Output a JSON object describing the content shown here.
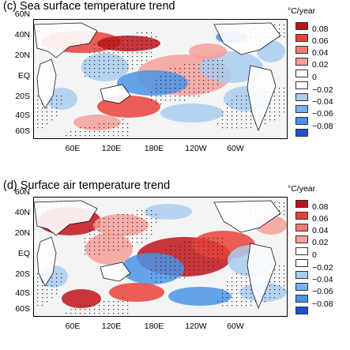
{
  "panels": [
    {
      "title": "(c) Sea surface temperature trend",
      "unit": "°C/year",
      "kind": "sst"
    },
    {
      "title": "(d) Surface air temperature trend",
      "unit": "°C/year",
      "kind": "sat"
    }
  ],
  "chart_data": [
    {
      "type": "heatmap",
      "title": "(c) Sea surface temperature trend",
      "colorbar_label": "°C/year",
      "y_tick_labels": [
        "60N",
        "40N",
        "20N",
        "EQ",
        "20S",
        "40S",
        "60S"
      ],
      "x_tick_labels": [
        "60E",
        "120E",
        "180E",
        "120W",
        "60W"
      ],
      "colorbar_levels": [
        -0.08,
        -0.06,
        -0.04,
        -0.02,
        0,
        0.02,
        0.04,
        0.06,
        0.08
      ],
      "colorbar_tick_labels": [
        "0.08",
        "0.06",
        "0.04",
        "0.02",
        "0",
        "−0.02",
        "−0.04",
        "−0.06",
        "−0.08"
      ]
    },
    {
      "type": "heatmap",
      "title": "(d) Surface air temperature trend",
      "colorbar_label": "°C/year",
      "y_tick_labels": [
        "60N",
        "40N",
        "20N",
        "EQ",
        "20S",
        "40S",
        "60S"
      ],
      "x_tick_labels": [
        "60E",
        "120E",
        "180E",
        "120W",
        "60W"
      ],
      "colorbar_levels": [
        -0.08,
        -0.06,
        -0.04,
        -0.02,
        0,
        0.02,
        0.04,
        0.06,
        0.08
      ],
      "colorbar_tick_labels": [
        "0.08",
        "0.06",
        "0.04",
        "0.02",
        "0",
        "−0.02",
        "−0.04",
        "−0.06",
        "−0.08"
      ]
    }
  ],
  "colors": {
    "strong_warm": "#c0131a",
    "warm": "#e8413a",
    "light_warm": "#f5a09a",
    "neutral": "#ffffff",
    "light_cool": "#a9ccf0",
    "cool": "#4a94e6",
    "strong_cool": "#1f4fd0"
  }
}
